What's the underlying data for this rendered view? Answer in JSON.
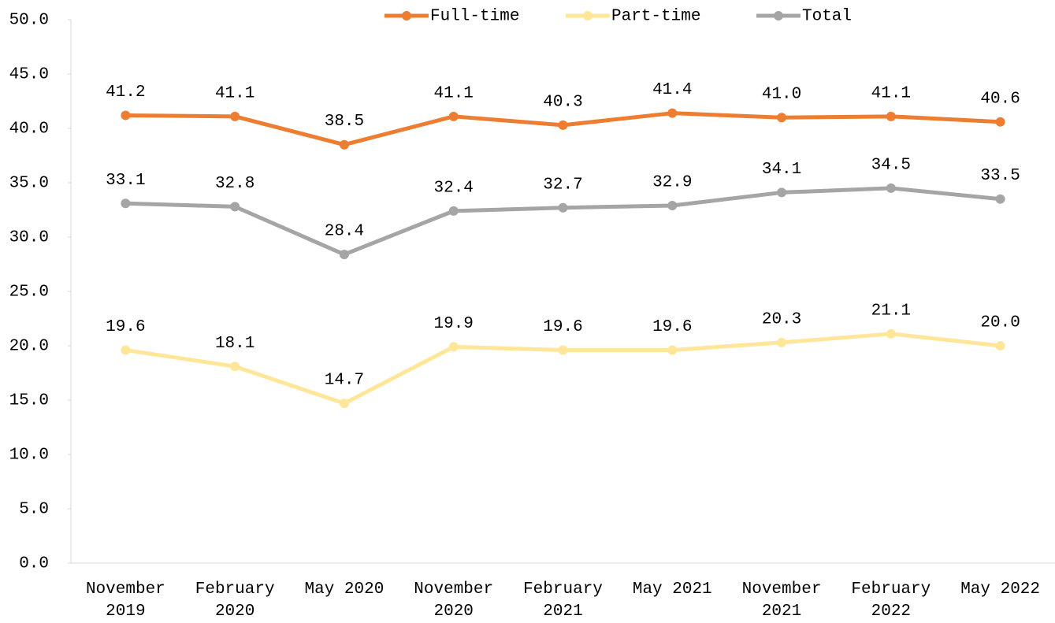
{
  "chart_data": {
    "type": "line",
    "categories": [
      "November 2019",
      "February 2020",
      "May 2020",
      "November 2020",
      "February 2021",
      "May 2021",
      "November 2021",
      "February 2022",
      "May 2022"
    ],
    "series": [
      {
        "name": "Full-time",
        "color": "#ED7D31",
        "values": [
          41.2,
          41.1,
          38.5,
          41.1,
          40.3,
          41.4,
          41.0,
          41.1,
          40.6
        ],
        "value_labels": [
          "41.2",
          "41.1",
          "38.5",
          "41.1",
          "40.3",
          "41.4",
          "41.0",
          "41.1",
          "40.6"
        ]
      },
      {
        "name": "Part-time",
        "color": "#FFE699",
        "values": [
          19.6,
          18.1,
          14.7,
          19.9,
          19.6,
          19.6,
          20.3,
          21.1,
          20.0
        ],
        "value_labels": [
          "19.6",
          "18.1",
          "14.7",
          "19.9",
          "19.6",
          "19.6",
          "20.3",
          "21.1",
          "20.0"
        ]
      },
      {
        "name": "Total",
        "color": "#A5A5A5",
        "values": [
          33.1,
          32.8,
          28.4,
          32.4,
          32.7,
          32.9,
          34.1,
          34.5,
          33.5
        ],
        "value_labels": [
          "33.1",
          "32.8",
          "28.4",
          "32.4",
          "32.7",
          "32.9",
          "34.1",
          "34.5",
          "33.5"
        ]
      }
    ],
    "ylim": [
      0,
      50
    ],
    "yticks": [
      {
        "value": 0,
        "label": "0.0"
      },
      {
        "value": 5,
        "label": "5.0"
      },
      {
        "value": 10,
        "label": "10.0"
      },
      {
        "value": 15,
        "label": "15.0"
      },
      {
        "value": 20,
        "label": "20.0"
      },
      {
        "value": 25,
        "label": "25.0"
      },
      {
        "value": 30,
        "label": "30.0"
      },
      {
        "value": 35,
        "label": "35.0"
      },
      {
        "value": 40,
        "label": "40.0"
      },
      {
        "value": 45,
        "label": "45.0"
      },
      {
        "value": 50,
        "label": "50.0"
      }
    ],
    "grid": false,
    "legend": "top"
  }
}
